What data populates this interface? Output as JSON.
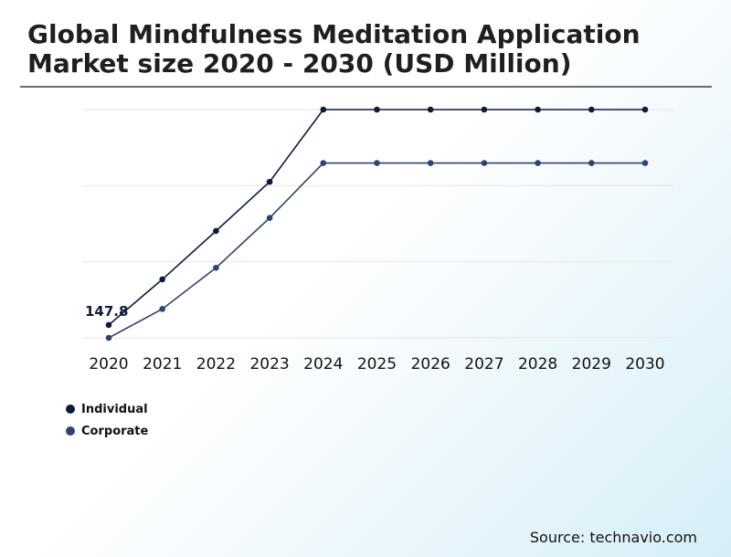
{
  "title_lines": [
    "Global Mindfulness Meditation Application",
    "Market size 2020 - 2030 (USD Million)"
  ],
  "source": "Source: technavio.com",
  "colors": {
    "individual": "#0d1a3c",
    "corporate": "#2f4270",
    "grid": "#e6e6e6"
  },
  "chart_data": {
    "type": "line",
    "title": "Global Mindfulness Meditation Application Market size 2020 - 2030 (USD Million)",
    "x": [
      "2020",
      "2021",
      "2022",
      "2023",
      "2024",
      "2025",
      "2026",
      "2027",
      "2028",
      "2029",
      "2030"
    ],
    "series": [
      {
        "name": "Individual",
        "values": [
          147.8,
          211,
          278,
          346,
          446,
          446,
          446,
          446,
          446,
          446,
          446
        ]
      },
      {
        "name": "Corporate",
        "values": [
          130,
          170,
          227,
          296,
          372,
          372,
          372,
          372,
          372,
          372,
          372
        ]
      }
    ],
    "data_labels": [
      {
        "series": 0,
        "index": 0,
        "text": "147.8"
      }
    ],
    "ylim": [
      130,
      446
    ],
    "grid": true,
    "legend": "bottom-left"
  }
}
